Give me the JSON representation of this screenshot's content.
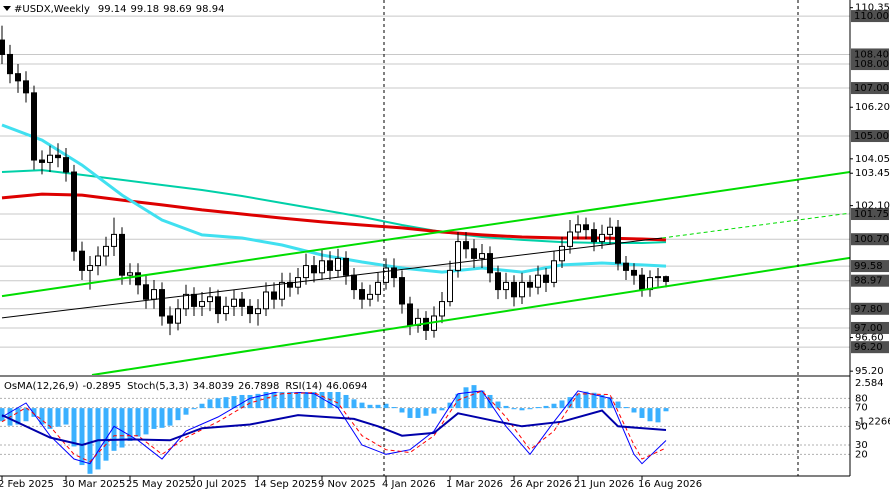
{
  "chart_data": [
    {
      "type": "candlestick",
      "title": "#USDX,Weekly",
      "categories": [
        "2 Feb 2025",
        null,
        null,
        null,
        null,
        null,
        null,
        null,
        "30 Mar 2025",
        null,
        null,
        null,
        null,
        null,
        null,
        null,
        "25 May 2025",
        null,
        null,
        null,
        null,
        null,
        null,
        null,
        "20 Jul 2025",
        null,
        null,
        null,
        null,
        null,
        null,
        null,
        "14 Sep 2025",
        null,
        null,
        null,
        null,
        null,
        null,
        null,
        "9 Nov 2025",
        null,
        null,
        null,
        null,
        null,
        null,
        null,
        "4 Jan 2026",
        null,
        null,
        null,
        null,
        null,
        null,
        null,
        "1 Mar 2026",
        null,
        null,
        null,
        null,
        null,
        null,
        null,
        "26 Apr 2026",
        null,
        null,
        null,
        null,
        null,
        null,
        null,
        "21 Jun 2026",
        null,
        null,
        null,
        null,
        null,
        null,
        null,
        "16 Aug 2026",
        null,
        null,
        null
      ],
      "open": [
        109.0,
        108.4,
        107.6,
        107.3,
        106.8,
        104.0,
        103.9,
        104.2,
        104.1,
        103.5,
        100.2,
        99.4,
        99.6,
        100.0,
        100.4,
        100.9,
        99.2,
        99.3,
        98.8,
        98.2,
        98.6,
        97.5,
        97.2,
        97.8,
        98.4,
        97.9,
        98.1,
        98.3,
        97.6,
        97.9,
        98.2,
        97.9,
        97.6,
        97.8,
        98.5,
        98.2,
        98.9,
        98.7,
        99.1,
        99.6,
        99.3,
        99.8,
        99.4,
        99.9,
        99.2,
        98.6,
        98.2,
        98.4,
        98.9,
        99.5,
        99.1,
        98.0,
        97.1,
        97.4,
        96.9,
        97.5,
        98.1,
        99.4,
        100.6,
        100.3,
        99.9,
        100.1,
        99.3,
        98.6,
        98.9,
        98.3,
        98.9,
        98.7,
        99.2,
        98.9,
        99.8,
        100.4,
        101.0,
        101.3,
        101.1,
        100.6,
        100.9,
        101.2,
        99.7,
        99.4,
        99.2,
        98.6,
        99.1,
        99.14
      ],
      "high": [
        109.6,
        108.8,
        108.0,
        107.7,
        107.1,
        104.4,
        104.6,
        104.7,
        104.5,
        103.8,
        100.6,
        100.0,
        100.4,
        100.8,
        101.6,
        101.2,
        99.7,
        99.7,
        99.2,
        99.0,
        98.9,
        97.9,
        98.2,
        98.8,
        98.7,
        98.5,
        98.7,
        98.6,
        98.3,
        98.6,
        98.5,
        98.2,
        98.2,
        98.9,
        98.9,
        99.3,
        99.3,
        99.5,
        100.1,
        100.0,
        100.3,
        100.2,
        100.3,
        100.2,
        99.5,
        98.9,
        98.8,
        99.3,
        99.9,
        99.9,
        99.4,
        98.3,
        97.8,
        97.7,
        97.9,
        98.5,
        99.8,
        101.0,
        101.0,
        100.7,
        100.5,
        100.4,
        99.6,
        99.3,
        99.2,
        99.3,
        99.2,
        99.6,
        99.5,
        100.2,
        100.8,
        101.5,
        101.7,
        101.6,
        101.4,
        101.3,
        101.6,
        101.5,
        100.0,
        99.7,
        99.5,
        99.4,
        99.5,
        99.18
      ],
      "low": [
        108.0,
        107.2,
        106.8,
        106.4,
        103.6,
        103.4,
        103.5,
        103.7,
        103.1,
        99.8,
        99.0,
        98.6,
        99.2,
        99.6,
        100.0,
        98.8,
        98.8,
        98.4,
        97.8,
        97.8,
        97.1,
        96.7,
        96.9,
        97.5,
        97.5,
        97.5,
        97.7,
        97.2,
        97.3,
        97.5,
        97.5,
        97.2,
        97.1,
        97.5,
        97.8,
        97.9,
        98.3,
        98.4,
        98.8,
        98.9,
        99.0,
        99.0,
        99.1,
        98.8,
        98.2,
        97.8,
        97.9,
        98.1,
        98.6,
        98.7,
        97.6,
        96.7,
        96.8,
        96.5,
        96.6,
        97.2,
        97.9,
        99.1,
        99.9,
        99.5,
        99.5,
        98.9,
        98.2,
        98.2,
        97.9,
        98.0,
        98.3,
        98.4,
        98.5,
        98.7,
        99.5,
        100.1,
        100.7,
        100.7,
        100.2,
        100.3,
        100.5,
        99.4,
        99.0,
        98.8,
        98.3,
        98.3,
        98.7,
        98.69
      ],
      "close": [
        108.4,
        107.6,
        107.3,
        106.8,
        104.0,
        103.9,
        104.2,
        104.1,
        103.5,
        100.2,
        99.4,
        99.6,
        100.0,
        100.4,
        100.9,
        99.2,
        99.3,
        98.8,
        98.2,
        98.6,
        97.5,
        97.2,
        97.8,
        98.4,
        97.9,
        98.1,
        98.3,
        97.6,
        97.9,
        98.2,
        97.9,
        97.6,
        97.8,
        98.5,
        98.2,
        98.9,
        98.7,
        99.1,
        99.6,
        99.3,
        99.8,
        99.4,
        99.9,
        99.2,
        98.6,
        98.2,
        98.4,
        98.9,
        99.5,
        99.1,
        98.0,
        97.1,
        97.4,
        96.9,
        97.5,
        98.1,
        99.4,
        100.6,
        100.3,
        99.9,
        100.1,
        99.3,
        98.6,
        98.9,
        98.3,
        98.9,
        98.7,
        99.2,
        98.9,
        99.8,
        100.4,
        101.0,
        101.3,
        101.1,
        100.6,
        100.9,
        101.2,
        99.7,
        99.4,
        99.2,
        98.6,
        99.1,
        99.14,
        98.94
      ],
      "xlim": [
        -0.25,
        106
      ],
      "ylim": [
        95.04,
        110.67
      ],
      "yticks": [
        {
          "value": 110.35,
          "label": "110.35"
        },
        {
          "value": 106.2,
          "label": "106.20"
        },
        {
          "value": 104.05,
          "label": "104.05"
        },
        {
          "value": 103.45,
          "label": "103.45"
        },
        {
          "value": 102.1,
          "label": "102.10"
        },
        {
          "value": 96.6,
          "label": "96.60"
        },
        {
          "value": 95.2,
          "label": "95.20"
        }
      ],
      "levels": [
        {
          "value": 110,
          "label": "110.00"
        },
        {
          "value": 108.4,
          "label": "108.40"
        },
        {
          "value": 108,
          "label": "108.00"
        },
        {
          "value": 107,
          "label": "107.00"
        },
        {
          "value": 105,
          "label": "105.00"
        },
        {
          "value": 101.75,
          "label": "101.75"
        },
        {
          "value": 100.7,
          "label": "100.70"
        },
        {
          "value": 99.58,
          "label": "99.58"
        },
        {
          "value": 98.97,
          "label": "98.97"
        },
        {
          "value": 97.8,
          "label": "97.80"
        },
        {
          "value": 97,
          "label": "97.00"
        },
        {
          "value": 96.2,
          "label": "96.20"
        }
      ],
      "series": [
        {
          "color": "#00d0a8",
          "width": 2,
          "x": [
            0,
            5,
            10,
            15,
            20,
            25,
            30,
            35,
            40,
            45,
            50,
            55,
            60,
            65,
            70,
            75,
            80,
            83
          ],
          "values": [
            103.5,
            103.58,
            103.38,
            103.17,
            102.96,
            102.75,
            102.5,
            102.21,
            101.92,
            101.63,
            101.29,
            101.0,
            100.79,
            100.67,
            100.58,
            100.54,
            100.54,
            100.58
          ]
        },
        {
          "color": "#dd0000",
          "width": 3,
          "x": [
            0,
            5,
            10,
            15,
            20,
            25,
            30,
            35,
            40,
            45,
            50,
            55,
            60,
            65,
            70,
            75,
            80,
            83
          ],
          "values": [
            102.42,
            102.58,
            102.54,
            102.33,
            102.13,
            101.92,
            101.75,
            101.58,
            101.42,
            101.29,
            101.17,
            101.0,
            100.88,
            100.79,
            100.75,
            100.75,
            100.71,
            100.67
          ]
        },
        {
          "color": "#40e0f0",
          "width": 3,
          "x": [
            0,
            5,
            10,
            15,
            20,
            25,
            30,
            35,
            40,
            45,
            50,
            55,
            60,
            65,
            70,
            75,
            80,
            83
          ],
          "values": [
            105.46,
            104.83,
            103.79,
            102.54,
            101.5,
            100.88,
            100.75,
            100.46,
            100.04,
            99.75,
            99.5,
            99.33,
            99.5,
            99.33,
            99.63,
            99.71,
            99.63,
            99.58
          ]
        },
        {
          "color": "#000000",
          "width": 1,
          "x": [
            0,
            82.5
          ],
          "values": [
            97.42,
            100.75
          ]
        },
        {
          "color": "#00dd00",
          "width": 1,
          "dash": true,
          "x": [
            82.5,
            106
          ],
          "values": [
            100.75,
            101.79
          ]
        },
        {
          "color": "#00dd00",
          "width": 2,
          "x": [
            0,
            106
          ],
          "values": [
            98.33,
            103.5
          ]
        },
        {
          "color": "#00dd00",
          "width": 2,
          "x": [
            11.25,
            106
          ],
          "values": [
            95.04,
            99.92
          ]
        }
      ]
    },
    {
      "type": "combo",
      "labels": [
        "OsMA(12,26,9)",
        "Stoch(5,3,3)",
        "RSI(14)"
      ],
      "osma": {
        "color": "#3ab0ff",
        "ylim": [
          -6.2,
          2.75
        ],
        "yticks": [
          2.584,
          -1.2266
        ],
        "values": [
          -1.2,
          -1.6,
          -1.5,
          -1.2,
          -0.8,
          -1.5,
          -1.9,
          -1.7,
          -1.5,
          -3.5,
          -5.2,
          -6.0,
          -5.6,
          -4.8,
          -3.9,
          -3.6,
          -3.0,
          -2.6,
          -2.4,
          -1.9,
          -1.8,
          -1.6,
          -1.1,
          -0.6,
          -0.1,
          0.4,
          0.8,
          0.9,
          1.0,
          1.1,
          1.2,
          1.2,
          1.3,
          1.5,
          1.7,
          1.9,
          2.1,
          2.3,
          2.5,
          2.4,
          2.2,
          1.9,
          1.6,
          1.2,
          0.8,
          0.5,
          0.3,
          0.3,
          0.4,
          0.1,
          -0.4,
          -0.9,
          -0.9,
          -0.7,
          -0.5,
          -0.2,
          0.5,
          1.3,
          1.9,
          2.1,
          1.6,
          1.2,
          0.6,
          0.2,
          -0.1,
          -0.2,
          -0.1,
          0.1,
          0.2,
          0.4,
          0.7,
          1.0,
          1.3,
          1.5,
          1.4,
          1.2,
          1.0,
          0.6,
          0.1,
          -0.4,
          -0.9,
          -1.2,
          -1.3,
          -0.2895
        ]
      },
      "ylim": [
        -3.2,
        101.8
      ],
      "yticks": [
        80,
        70,
        50,
        30,
        20
      ],
      "series": [
        {
          "color": "#0000ff",
          "width": 1,
          "x": [
            0,
            3,
            6,
            9,
            11,
            14,
            17,
            20,
            23,
            27,
            31,
            35,
            39,
            42,
            45,
            48,
            51,
            54,
            57,
            60,
            63,
            66,
            69,
            72,
            76,
            79,
            80,
            83
          ],
          "values": [
            60,
            75,
            40,
            15,
            10,
            50,
            35,
            15,
            45,
            60,
            80,
            88,
            85,
            70,
            30,
            20,
            25,
            45,
            85,
            88,
            50,
            20,
            55,
            88,
            80,
            20,
            10,
            34.8039
          ]
        },
        {
          "color": "#ff0000",
          "width": 1,
          "dash": true,
          "x": [
            0,
            3,
            6,
            9,
            11,
            14,
            17,
            20,
            23,
            27,
            31,
            35,
            39,
            42,
            45,
            48,
            51,
            54,
            57,
            60,
            63,
            66,
            69,
            72,
            76,
            79,
            80,
            83
          ],
          "values": [
            55,
            70,
            50,
            20,
            12,
            40,
            40,
            20,
            38,
            55,
            75,
            85,
            86,
            75,
            40,
            25,
            22,
            40,
            78,
            88,
            60,
            25,
            45,
            85,
            84,
            30,
            15,
            26.7898
          ]
        },
        {
          "color": "#0000aa",
          "width": 2,
          "x": [
            0,
            6,
            10,
            12,
            16,
            21,
            25,
            31,
            37,
            44,
            47,
            50,
            54,
            57,
            62,
            65,
            70,
            75,
            77,
            83
          ],
          "values": [
            62,
            38,
            30,
            35,
            36,
            35,
            48,
            52,
            62,
            58,
            50,
            40,
            43,
            64,
            55,
            50,
            55,
            67,
            50,
            46.0694
          ]
        }
      ]
    }
  ]
}
